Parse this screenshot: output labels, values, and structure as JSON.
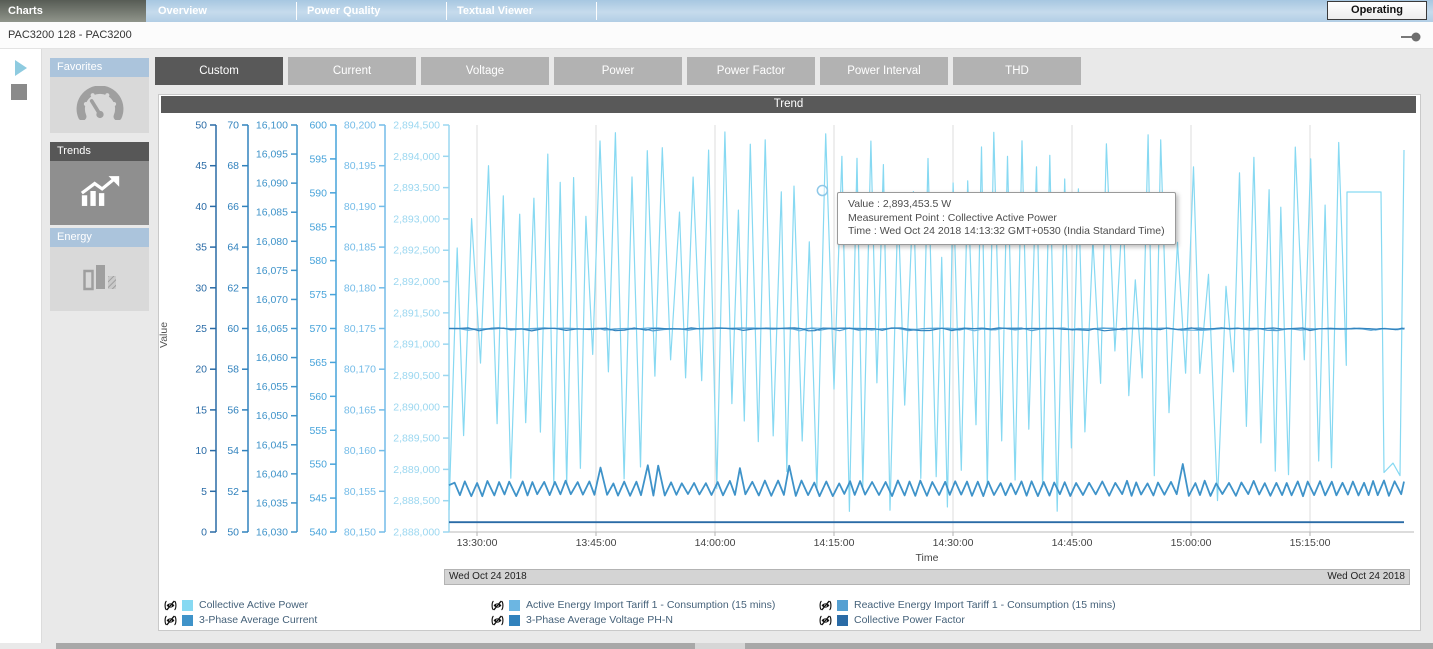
{
  "tabs": [
    {
      "label": "Charts",
      "active": true
    },
    {
      "label": "Overview",
      "active": false
    },
    {
      "label": "Power Quality",
      "active": false
    },
    {
      "label": "Textual Viewer",
      "active": false
    }
  ],
  "status_button": "Operating",
  "breadcrumb": "PAC3200 128 - PAC3200",
  "sidebar": {
    "sections": [
      {
        "label": "Favorites",
        "icon": "gauge-icon",
        "active": false
      },
      {
        "label": "Trends",
        "icon": "trend-icon",
        "active": true
      },
      {
        "label": "Energy",
        "icon": "bar-chart-icon",
        "active": false
      }
    ]
  },
  "toolbar": {
    "buttons": [
      "Custom",
      "Current",
      "Voltage",
      "Power",
      "Power Factor",
      "Power Interval",
      "THD"
    ],
    "active_index": 0
  },
  "chart": {
    "type": "line",
    "title": "Trend",
    "y_label": "Value",
    "x_axis": {
      "label": "Time",
      "ticks": [
        "13:30:00",
        "13:45:00",
        "14:00:00",
        "14:15:00",
        "14:30:00",
        "14:45:00",
        "15:00:00",
        "15:15:00"
      ]
    },
    "y_axes": [
      {
        "min": 0,
        "max": 50,
        "step": 5,
        "color": "#2a6ba6"
      },
      {
        "min": 50,
        "max": 70,
        "step": 2,
        "color": "#3182bd"
      },
      {
        "min": 16030,
        "max": 16100,
        "step": 5,
        "color": "#3f93c9"
      },
      {
        "min": 540,
        "max": 600,
        "step": 5,
        "color": "#47a3da"
      },
      {
        "min": 80150,
        "max": 80200,
        "step": 5,
        "color": "#74bce8"
      },
      {
        "min": 2888000,
        "max": 2894500,
        "step": 500,
        "color": "#9bd7f0"
      }
    ],
    "seed": 20181024,
    "series": [
      {
        "name": "Collective Active Power",
        "color": "#87d9f2",
        "axis": 5,
        "shape": "spikes",
        "peak_min": 2892950,
        "peak_max": 2894400,
        "low_peak_min": 2891900,
        "low_peak_max": 2892700,
        "trough_min": 2888300,
        "trough_max": 2890900,
        "tail_plateau": 2893430,
        "tail_drop": 2888950,
        "tail_end": 2894100
      },
      {
        "name": "Active Energy Import Tariff 1 - Consumption (15 mins)",
        "color": "#6cb6e2",
        "axis": 4,
        "shape": "flat-notch",
        "value": 80175
      },
      {
        "name": "Reactive Energy Import Tariff 1 - Consumption (15 mins)",
        "color": "#55a0d2",
        "axis": 3,
        "shape": "flat-notch",
        "value": 570
      },
      {
        "name": "3-Phase Average Current",
        "color": "#3f93c9",
        "axis": 1,
        "shape": "zigzag",
        "base": 52.1,
        "amp": 0.28,
        "spike": 53.1
      },
      {
        "name": "3-Phase Average Voltage PH-N",
        "color": "#3182bd",
        "axis": 2,
        "shape": "flat-notch",
        "value": 16065
      },
      {
        "name": "Collective Power Factor",
        "color": "#2a6ba6",
        "axis": 0,
        "shape": "flat",
        "value": 1.2
      }
    ],
    "marker": {
      "series": "Collective Active Power",
      "value": 2893453.5,
      "time": "14:13:32"
    },
    "tooltip": {
      "lines": [
        "Value : 2,893,453.5 W",
        "Measurement Point : Collective Active Power",
        "Time : Wed Oct 24 2018 14:13:32 GMT+0530 (India Standard Time)"
      ]
    },
    "date_bar": {
      "left": "Wed Oct 24 2018",
      "right": "Wed Oct 24 2018"
    }
  }
}
